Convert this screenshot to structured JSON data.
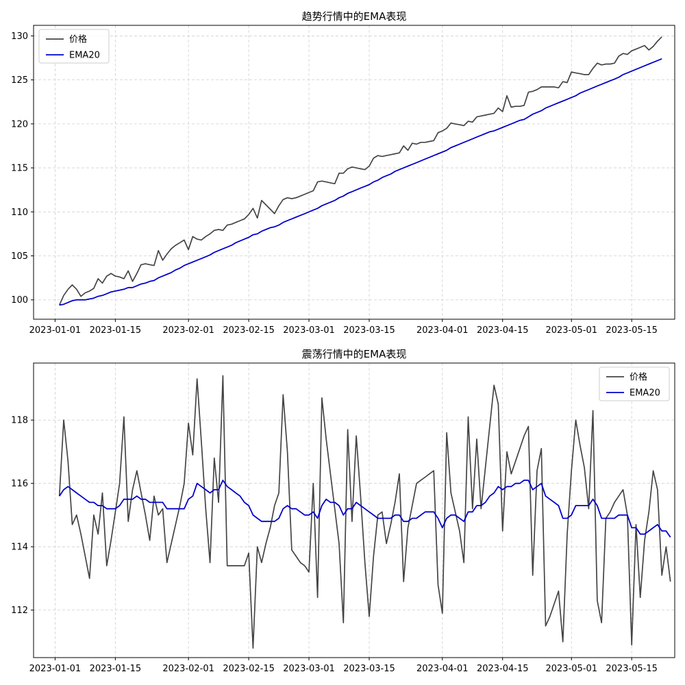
{
  "chart_data": [
    {
      "type": "line",
      "title": "趋势行情中的EMA表现",
      "xlabel": "",
      "ylabel": "",
      "grid": true,
      "legend_position": "top-left",
      "x_ticks": [
        "2023-01-01",
        "2023-01-15",
        "2023-02-01",
        "2023-02-15",
        "2023-03-01",
        "2023-03-15",
        "2023-04-01",
        "2023-04-15",
        "2023-05-01",
        "2023-05-15"
      ],
      "y_ticks": [
        100,
        105,
        110,
        115,
        120,
        125,
        130
      ],
      "xlim": [
        "2023-12-27",
        "2023-05-25"
      ],
      "ylim": [
        97.8,
        131.2
      ],
      "x_start": "2023-01-02",
      "series": [
        {
          "name": "价格",
          "color": "#444444",
          "values": [
            99.4,
            100.5,
            101.2,
            101.7,
            101.2,
            100.4,
            100.8,
            101.0,
            101.3,
            102.4,
            101.9,
            102.7,
            103.0,
            102.7,
            102.6,
            102.4,
            103.3,
            102.1,
            103.0,
            104.0,
            104.1,
            104.0,
            103.9,
            105.6,
            104.5,
            105.2,
            105.8,
            106.2,
            106.5,
            106.8,
            105.7,
            107.2,
            106.9,
            106.8,
            107.2,
            107.5,
            107.9,
            108.0,
            107.9,
            108.5,
            108.6,
            108.8,
            109.0,
            109.2,
            109.7,
            110.4,
            109.3,
            111.3,
            110.8,
            110.3,
            109.8,
            110.7,
            111.4,
            111.6,
            111.5,
            111.6,
            111.8,
            112.0,
            112.2,
            112.4,
            113.4,
            113.5,
            113.4,
            113.3,
            113.2,
            114.4,
            114.4,
            114.9,
            115.1,
            115.0,
            114.9,
            114.8,
            115.2,
            116.1,
            116.4,
            116.3,
            116.4,
            116.5,
            116.6,
            116.7,
            117.5,
            117.0,
            117.8,
            117.7,
            117.9,
            117.9,
            118.0,
            118.1,
            119.0,
            119.2,
            119.5,
            120.1,
            120.0,
            119.9,
            119.8,
            120.3,
            120.2,
            120.8,
            120.9,
            121.0,
            121.1,
            121.2,
            121.8,
            121.4,
            123.2,
            121.9,
            122.0,
            122.0,
            122.1,
            123.6,
            123.7,
            123.9,
            124.2,
            124.2,
            124.2,
            124.2,
            124.1,
            124.8,
            124.7,
            125.9,
            125.8,
            125.7,
            125.6,
            125.6,
            126.3,
            126.9,
            126.7,
            126.8,
            126.8,
            126.9,
            127.7,
            128.0,
            127.9,
            128.3,
            128.5,
            128.7,
            128.9,
            128.4,
            128.8,
            129.4,
            129.9
          ]
        },
        {
          "name": "EMA20",
          "color": "#0000cc",
          "values": [
            99.4,
            99.5,
            99.7,
            99.9,
            100.0,
            100.0,
            100.0,
            100.1,
            100.2,
            100.4,
            100.5,
            100.7,
            100.9,
            101.0,
            101.1,
            101.2,
            101.4,
            101.4,
            101.6,
            101.8,
            101.9,
            102.1,
            102.2,
            102.5,
            102.7,
            102.9,
            103.1,
            103.4,
            103.6,
            103.9,
            104.1,
            104.3,
            104.5,
            104.7,
            104.9,
            105.1,
            105.4,
            105.6,
            105.8,
            106.0,
            106.2,
            106.5,
            106.7,
            106.9,
            107.1,
            107.4,
            107.5,
            107.8,
            108.0,
            108.2,
            108.3,
            108.5,
            108.8,
            109.0,
            109.2,
            109.4,
            109.6,
            109.8,
            110.0,
            110.2,
            110.4,
            110.7,
            110.9,
            111.1,
            111.3,
            111.6,
            111.8,
            112.1,
            112.3,
            112.5,
            112.7,
            112.9,
            113.1,
            113.4,
            113.6,
            113.9,
            114.1,
            114.3,
            114.6,
            114.8,
            115.0,
            115.2,
            115.4,
            115.6,
            115.8,
            116.0,
            116.2,
            116.4,
            116.6,
            116.8,
            117.0,
            117.3,
            117.5,
            117.7,
            117.9,
            118.1,
            118.3,
            118.5,
            118.7,
            118.9,
            119.1,
            119.2,
            119.4,
            119.6,
            119.8,
            120.0,
            120.2,
            120.4,
            120.5,
            120.8,
            121.1,
            121.3,
            121.5,
            121.8,
            122.0,
            122.2,
            122.4,
            122.6,
            122.8,
            123.0,
            123.2,
            123.5,
            123.7,
            123.9,
            124.1,
            124.3,
            124.5,
            124.7,
            124.9,
            125.1,
            125.3,
            125.6,
            125.8,
            126.0,
            126.2,
            126.4,
            126.6,
            126.8,
            127.0,
            127.2,
            127.4
          ]
        }
      ]
    },
    {
      "type": "line",
      "title": "震荡行情中的EMA表现",
      "xlabel": "",
      "ylabel": "",
      "grid": true,
      "legend_position": "top-right",
      "x_ticks": [
        "2023-01-01",
        "2023-01-15",
        "2023-02-01",
        "2023-02-15",
        "2023-03-01",
        "2023-03-15",
        "2023-04-01",
        "2023-04-15",
        "2023-05-01",
        "2023-05-15"
      ],
      "y_ticks": [
        112,
        114,
        116,
        118
      ],
      "xlim": [
        "2023-12-27",
        "2023-05-25"
      ],
      "ylim": [
        110.5,
        119.8
      ],
      "x_start": "2023-01-02",
      "series": [
        {
          "name": "价格",
          "color": "#444444",
          "values": [
            115.6,
            118.0,
            116.7,
            114.7,
            115.0,
            114.4,
            113.7,
            113.0,
            115.0,
            114.4,
            115.7,
            113.4,
            114.2,
            115.1,
            116.0,
            118.1,
            114.8,
            115.8,
            116.4,
            115.7,
            115.0,
            114.2,
            115.6,
            115.0,
            115.2,
            113.5,
            114.1,
            114.7,
            115.3,
            116.0,
            117.9,
            116.9,
            119.3,
            117.3,
            115.2,
            113.5,
            116.8,
            115.4,
            119.4,
            113.4,
            113.4,
            113.4,
            113.4,
            113.4,
            113.8,
            110.8,
            114.0,
            113.5,
            114.1,
            114.6,
            115.3,
            115.7,
            118.8,
            117.0,
            113.9,
            113.7,
            113.5,
            113.4,
            113.2,
            116.0,
            112.4,
            118.7,
            117.4,
            116.3,
            115.2,
            114.1,
            111.6,
            117.7,
            114.8,
            117.5,
            115.6,
            113.5,
            111.8,
            113.7,
            115.0,
            115.1,
            114.1,
            114.7,
            115.4,
            116.3,
            112.9,
            114.6,
            115.3,
            116.0,
            116.1,
            116.2,
            116.3,
            116.4,
            112.8,
            111.9,
            117.6,
            115.7,
            115.1,
            114.5,
            113.5,
            118.1,
            115.2,
            117.4,
            115.2,
            116.5,
            117.8,
            119.1,
            118.5,
            114.5,
            117.0,
            116.3,
            116.7,
            117.1,
            117.5,
            117.8,
            113.1,
            116.4,
            117.1,
            111.5,
            111.8,
            112.2,
            112.6,
            111.0,
            114.4,
            116.4,
            118.0,
            117.2,
            116.5,
            115.2,
            118.3,
            112.3,
            111.6,
            114.9,
            115.1,
            115.4,
            115.6,
            115.8,
            115.0,
            110.9,
            114.7,
            112.4,
            114.2,
            115.1,
            116.4,
            115.8,
            113.1,
            114.0,
            112.9
          ]
        },
        {
          "name": "EMA20",
          "color": "#0000cc",
          "values": [
            115.6,
            115.8,
            115.9,
            115.8,
            115.7,
            115.6,
            115.5,
            115.4,
            115.4,
            115.3,
            115.3,
            115.2,
            115.2,
            115.2,
            115.3,
            115.5,
            115.5,
            115.5,
            115.6,
            115.5,
            115.5,
            115.4,
            115.4,
            115.4,
            115.4,
            115.2,
            115.2,
            115.2,
            115.2,
            115.2,
            115.5,
            115.6,
            116.0,
            115.9,
            115.8,
            115.7,
            115.8,
            115.8,
            116.1,
            115.9,
            115.8,
            115.7,
            115.6,
            115.4,
            115.3,
            115.0,
            114.9,
            114.8,
            114.8,
            114.8,
            114.8,
            114.9,
            115.2,
            115.3,
            115.2,
            115.2,
            115.1,
            115.0,
            115.0,
            115.1,
            114.9,
            115.3,
            115.5,
            115.4,
            115.4,
            115.3,
            115.0,
            115.2,
            115.2,
            115.4,
            115.3,
            115.2,
            115.1,
            115.0,
            114.9,
            114.9,
            114.9,
            114.9,
            115.0,
            115.0,
            114.8,
            114.8,
            114.9,
            114.9,
            115.0,
            115.1,
            115.1,
            115.1,
            114.9,
            114.6,
            114.9,
            115.0,
            115.0,
            114.9,
            114.8,
            115.1,
            115.1,
            115.3,
            115.3,
            115.4,
            115.6,
            115.7,
            115.9,
            115.8,
            115.9,
            115.9,
            116.0,
            116.0,
            116.1,
            116.1,
            115.8,
            115.9,
            116.0,
            115.6,
            115.5,
            115.4,
            115.3,
            114.9,
            114.9,
            115.0,
            115.3,
            115.3,
            115.3,
            115.3,
            115.5,
            115.3,
            114.9,
            114.9,
            114.9,
            114.9,
            115.0,
            115.0,
            115.0,
            114.6,
            114.6,
            114.4,
            114.4,
            114.5,
            114.6,
            114.7,
            114.5,
            114.5,
            114.3
          ]
        }
      ]
    }
  ]
}
